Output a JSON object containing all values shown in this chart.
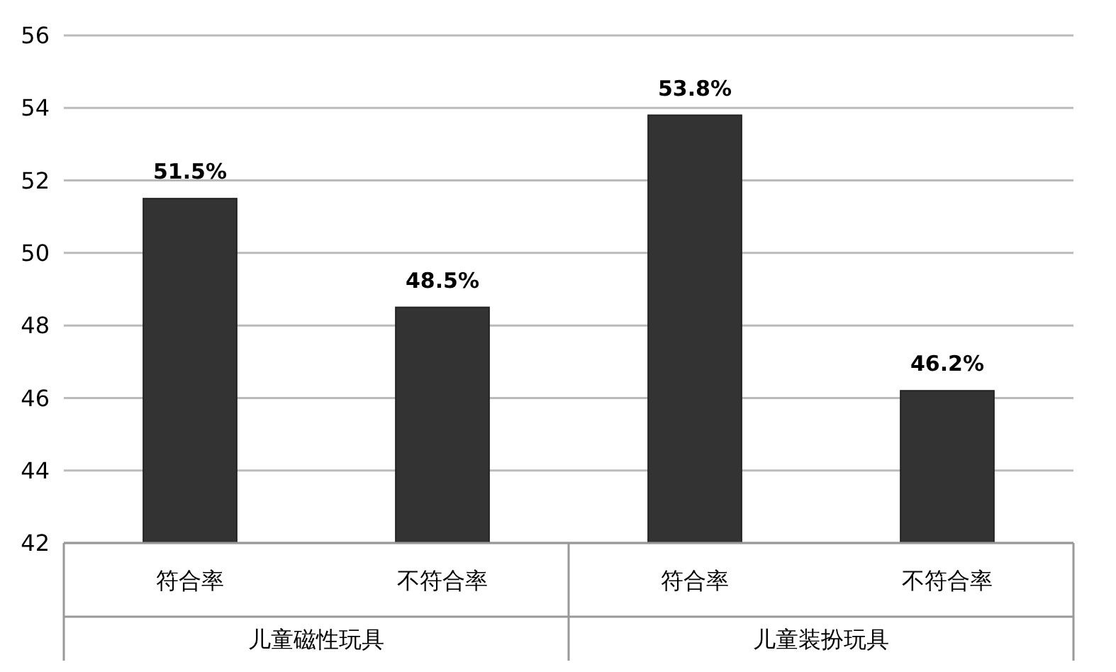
{
  "chart_data": {
    "type": "bar",
    "categories": [
      "符合率",
      "不符合率",
      "符合率",
      "不符合率"
    ],
    "values": [
      51.5,
      48.5,
      53.8,
      46.2
    ],
    "value_labels": [
      "51.5%",
      "48.5%",
      "53.8%",
      "46.2%"
    ],
    "color": "#333333",
    "ylim": [
      42,
      56
    ],
    "yticks": [
      42,
      44,
      46,
      48,
      50,
      52,
      54,
      56
    ],
    "grid": "y",
    "annotations": [
      "儿童磁性玩具",
      "儿童装扮玩具"
    ]
  }
}
